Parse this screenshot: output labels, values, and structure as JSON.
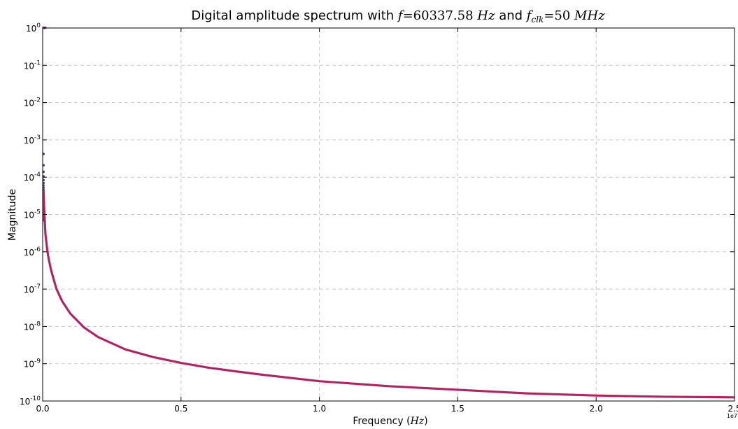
{
  "chart_data": {
    "type": "scatter",
    "title": {
      "prefix": "Digital amplitude spectrum with ",
      "f_symbol": "f",
      "f_value": "=60337.58 ",
      "f_unit": "Hz",
      "joiner": " and ",
      "clk_symbol": "f",
      "clk_subscript": "clk",
      "clk_value": "=50 ",
      "clk_unit": "MHz"
    },
    "xlabel": {
      "text": "Frequency (",
      "unit": "Hz",
      "close": ")"
    },
    "ylabel": "Magnitude",
    "x_offset_label": "1e7",
    "xlim": [
      0,
      25000000
    ],
    "ylim": [
      1e-10,
      1
    ],
    "yscale": "log",
    "grid": true,
    "x_ticks": [
      {
        "value": 0,
        "label": "0.0"
      },
      {
        "value": 5000000,
        "label": "0.5"
      },
      {
        "value": 10000000,
        "label": "1.0"
      },
      {
        "value": 15000000,
        "label": "1.5"
      },
      {
        "value": 20000000,
        "label": "2.0"
      },
      {
        "value": 25000000,
        "label": "2.5"
      }
    ],
    "y_ticks": [
      {
        "value": 1,
        "base": "10",
        "exp": "0"
      },
      {
        "value": 0.1,
        "base": "10",
        "exp": "-1"
      },
      {
        "value": 0.01,
        "base": "10",
        "exp": "-2"
      },
      {
        "value": 0.001,
        "base": "10",
        "exp": "-3"
      },
      {
        "value": 0.0001,
        "base": "10",
        "exp": "-4"
      },
      {
        "value": 1e-05,
        "base": "10",
        "exp": "-5"
      },
      {
        "value": 1e-06,
        "base": "10",
        "exp": "-6"
      },
      {
        "value": 1e-07,
        "base": "10",
        "exp": "-7"
      },
      {
        "value": 1e-08,
        "base": "10",
        "exp": "-8"
      },
      {
        "value": 1e-09,
        "base": "10",
        "exp": "-9"
      },
      {
        "value": 1e-10,
        "base": "10",
        "exp": "-10"
      }
    ],
    "series": [
      {
        "color": "#c0245a",
        "marker_color": "#4a3f8c",
        "peak": [
          {
            "x": 60337.58,
            "y": 1.0
          }
        ],
        "leakage_points": [
          {
            "x": 30000,
            "y": 0.00042
          },
          {
            "x": 30000,
            "y": 0.00021
          },
          {
            "x": 30000,
            "y": 0.00014
          },
          {
            "x": 30000,
            "y": 0.000105
          },
          {
            "x": 30000,
            "y": 8.4e-05
          },
          {
            "x": 30000,
            "y": 7e-05
          },
          {
            "x": 30000,
            "y": 6e-05
          },
          {
            "x": 30000,
            "y": 5.2e-05
          },
          {
            "x": 30000,
            "y": 4.5e-05
          },
          {
            "x": 30000,
            "y": 7e-06
          }
        ],
        "curve": [
          {
            "x": 30000,
            "y": 4.5e-05
          },
          {
            "x": 60000,
            "y": 1.2e-05
          },
          {
            "x": 100000,
            "y": 3e-06
          },
          {
            "x": 150000,
            "y": 1.4e-06
          },
          {
            "x": 200000,
            "y": 7.5e-07
          },
          {
            "x": 300000,
            "y": 3.3e-07
          },
          {
            "x": 400000,
            "y": 1.8e-07
          },
          {
            "x": 500000,
            "y": 1e-07
          },
          {
            "x": 700000,
            "y": 4.8e-08
          },
          {
            "x": 1000000,
            "y": 2.2e-08
          },
          {
            "x": 1500000,
            "y": 9.3e-09
          },
          {
            "x": 2000000,
            "y": 5.2e-09
          },
          {
            "x": 3000000,
            "y": 2.4e-09
          },
          {
            "x": 4000000,
            "y": 1.5e-09
          },
          {
            "x": 5000000,
            "y": 1.05e-09
          },
          {
            "x": 6000000,
            "y": 7.8e-10
          },
          {
            "x": 7000000,
            "y": 6.2e-10
          },
          {
            "x": 8000000,
            "y": 5e-10
          },
          {
            "x": 10000000,
            "y": 3.4e-10
          },
          {
            "x": 12500000,
            "y": 2.5e-10
          },
          {
            "x": 15000000,
            "y": 2e-10
          },
          {
            "x": 17500000,
            "y": 1.6e-10
          },
          {
            "x": 20000000,
            "y": 1.4e-10
          },
          {
            "x": 22500000,
            "y": 1.3e-10
          },
          {
            "x": 25000000,
            "y": 1.25e-10
          }
        ]
      }
    ]
  }
}
